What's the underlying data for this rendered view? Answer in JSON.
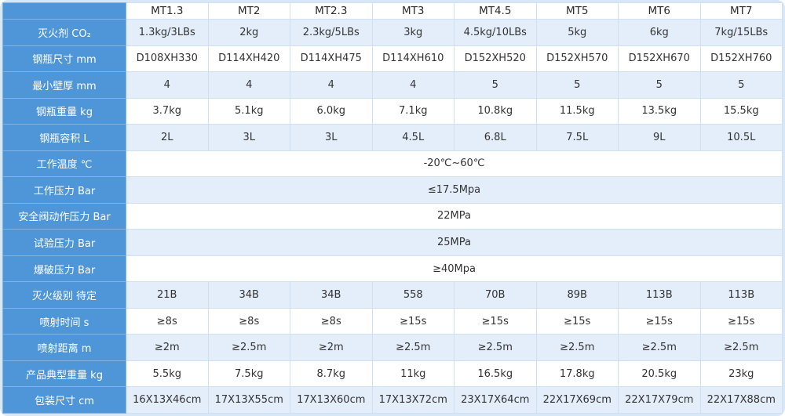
{
  "table": {
    "corner_label": "",
    "columns": [
      "MT1.3",
      "MT2",
      "MT2.3",
      "MT3",
      "MT4.5",
      "MT5",
      "MT6",
      "MT7"
    ],
    "rows": [
      {
        "label": "灭火剂 CO₂",
        "values": [
          "1.3kg/3LBs",
          "2kg",
          "2.3kg/5LBs",
          "3kg",
          "4.5kg/10LBs",
          "5kg",
          "6kg",
          "7kg/15LBs"
        ]
      },
      {
        "label": "钢瓶尺寸 mm",
        "values": [
          "D108XH330",
          "D114XH420",
          "D114XH475",
          "D114XH610",
          "D152XH520",
          "D152XH570",
          "D152XH670",
          "D152XH760"
        ]
      },
      {
        "label": "最小壁厚 mm",
        "values": [
          "4",
          "4",
          "4",
          "4",
          "5",
          "5",
          "5",
          "5"
        ]
      },
      {
        "label": "钢瓶重量 kg",
        "values": [
          "3.7kg",
          "5.1kg",
          "6.0kg",
          "7.1kg",
          "10.8kg",
          "11.5kg",
          "13.5kg",
          "15.5kg"
        ]
      },
      {
        "label": "钢瓶容积 L",
        "values": [
          "2L",
          "3L",
          "3L",
          "4.5L",
          "6.8L",
          "7.5L",
          "9L",
          "10.5L"
        ]
      },
      {
        "label": "工作温度 ℃",
        "span": "-20℃~60℃"
      },
      {
        "label": "工作压力 Bar",
        "span": "≤17.5Mpa"
      },
      {
        "label": "安全阀动作压力 Bar",
        "span": "22MPa"
      },
      {
        "label": "试验压力 Bar",
        "span": "25MPa"
      },
      {
        "label": "爆破压力 Bar",
        "span": "≥40Mpa"
      },
      {
        "label": "灭火级别 待定",
        "values": [
          "21B",
          "34B",
          "34B",
          "558",
          "70B",
          "89B",
          "113B",
          "113B"
        ]
      },
      {
        "label": "喷射时间 s",
        "values": [
          "≥8s",
          "≥8s",
          "≥8s",
          "≥15s",
          "≥15s",
          "≥15s",
          "≥15s",
          "≥15s"
        ]
      },
      {
        "label": "喷射距离 m",
        "values": [
          "≥2m",
          "≥2.5m",
          "≥2m",
          "≥2.5m",
          "≥2.5m",
          "≥2.5m",
          "≥2.5m",
          "≥2.5m"
        ]
      },
      {
        "label": "产品典型重量 kg",
        "values": [
          "5.5kg",
          "7.5kg",
          "8.7kg",
          "11kg",
          "16.5kg",
          "17.8kg",
          "20.5kg",
          "23kg"
        ]
      },
      {
        "label": "包装尺寸 cm",
        "values": [
          "16X13X46cm",
          "17X13X55cm",
          "17X13X60cm",
          "17X13X72cm",
          "23X17X64cm",
          "22X17X69cm",
          "22X17X79cm",
          "22X17X88cm"
        ]
      }
    ],
    "colors": {
      "row_header_bg": "#4f96d8",
      "alt_row_bg": "#e3eefa",
      "row_bg": "#ffffff",
      "border": "#cfe0f2",
      "header_text": "#ffffff",
      "cell_text": "#333333"
    }
  }
}
